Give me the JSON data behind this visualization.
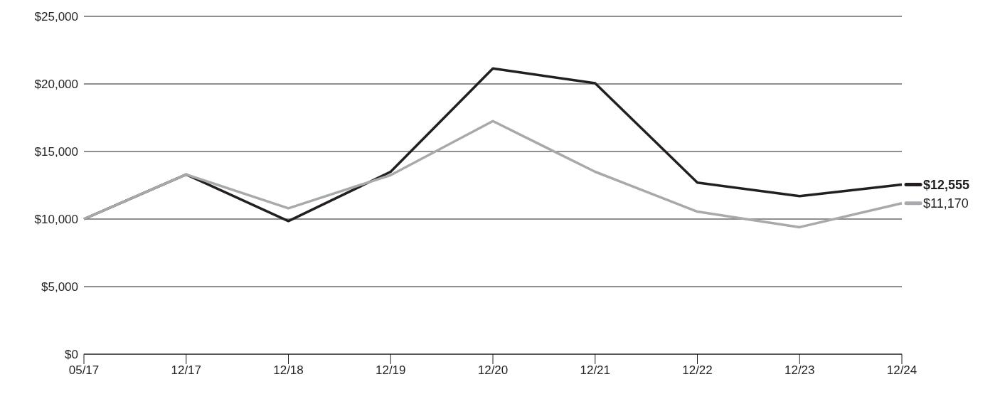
{
  "chart_data": {
    "type": "line",
    "categories": [
      "05/17",
      "12/17",
      "12/18",
      "12/19",
      "12/20",
      "12/21",
      "12/22",
      "12/23",
      "12/24"
    ],
    "series": [
      {
        "color": "#231f20",
        "values": [
          10000,
          13300,
          9850,
          13500,
          21150,
          20050,
          12700,
          11700,
          12555
        ],
        "value_labels": [
          null,
          null,
          null,
          null,
          null,
          null,
          null,
          null,
          "$12,555"
        ]
      },
      {
        "color": "#a7a9ac",
        "values": [
          10000,
          13300,
          10800,
          13250,
          17250,
          13500,
          10550,
          9400,
          11170
        ],
        "value_labels": [
          null,
          null,
          null,
          null,
          null,
          null,
          null,
          null,
          "$11,170"
        ]
      }
    ],
    "ylim": [
      0,
      25000
    ],
    "yticks": [
      {
        "value": 0,
        "label": "$0"
      },
      {
        "value": 5000,
        "label": "$5,000"
      },
      {
        "value": 10000,
        "label": "$10,000"
      },
      {
        "value": 15000,
        "label": "$15,000"
      },
      {
        "value": 20000,
        "label": "$20,000"
      },
      {
        "value": 25000,
        "label": "$25,000"
      }
    ],
    "grid": "y",
    "marker": "none",
    "line_style": "solid"
  }
}
